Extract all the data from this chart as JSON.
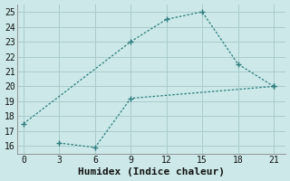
{
  "xlabel": "Humidex (Indice chaleur)",
  "xlim": [
    -0.5,
    22
  ],
  "ylim": [
    15.5,
    25.5
  ],
  "xticks": [
    0,
    3,
    6,
    9,
    12,
    15,
    18,
    21
  ],
  "yticks": [
    16,
    17,
    18,
    19,
    20,
    21,
    22,
    23,
    24,
    25
  ],
  "line1_x": [
    0,
    9,
    12,
    15,
    18,
    21
  ],
  "line1_y": [
    17.5,
    23.0,
    24.5,
    25.0,
    21.5,
    20.0
  ],
  "line2_x": [
    3,
    6,
    9,
    21
  ],
  "line2_y": [
    16.2,
    15.9,
    19.2,
    20.0
  ],
  "line_color": "#2d7d7d",
  "marker": "+",
  "marker_size": 5,
  "bg_color": "#cce8e8",
  "grid_color": "#aacccc",
  "font_family": "monospace",
  "font_size": 7,
  "xlabel_fontsize": 8
}
